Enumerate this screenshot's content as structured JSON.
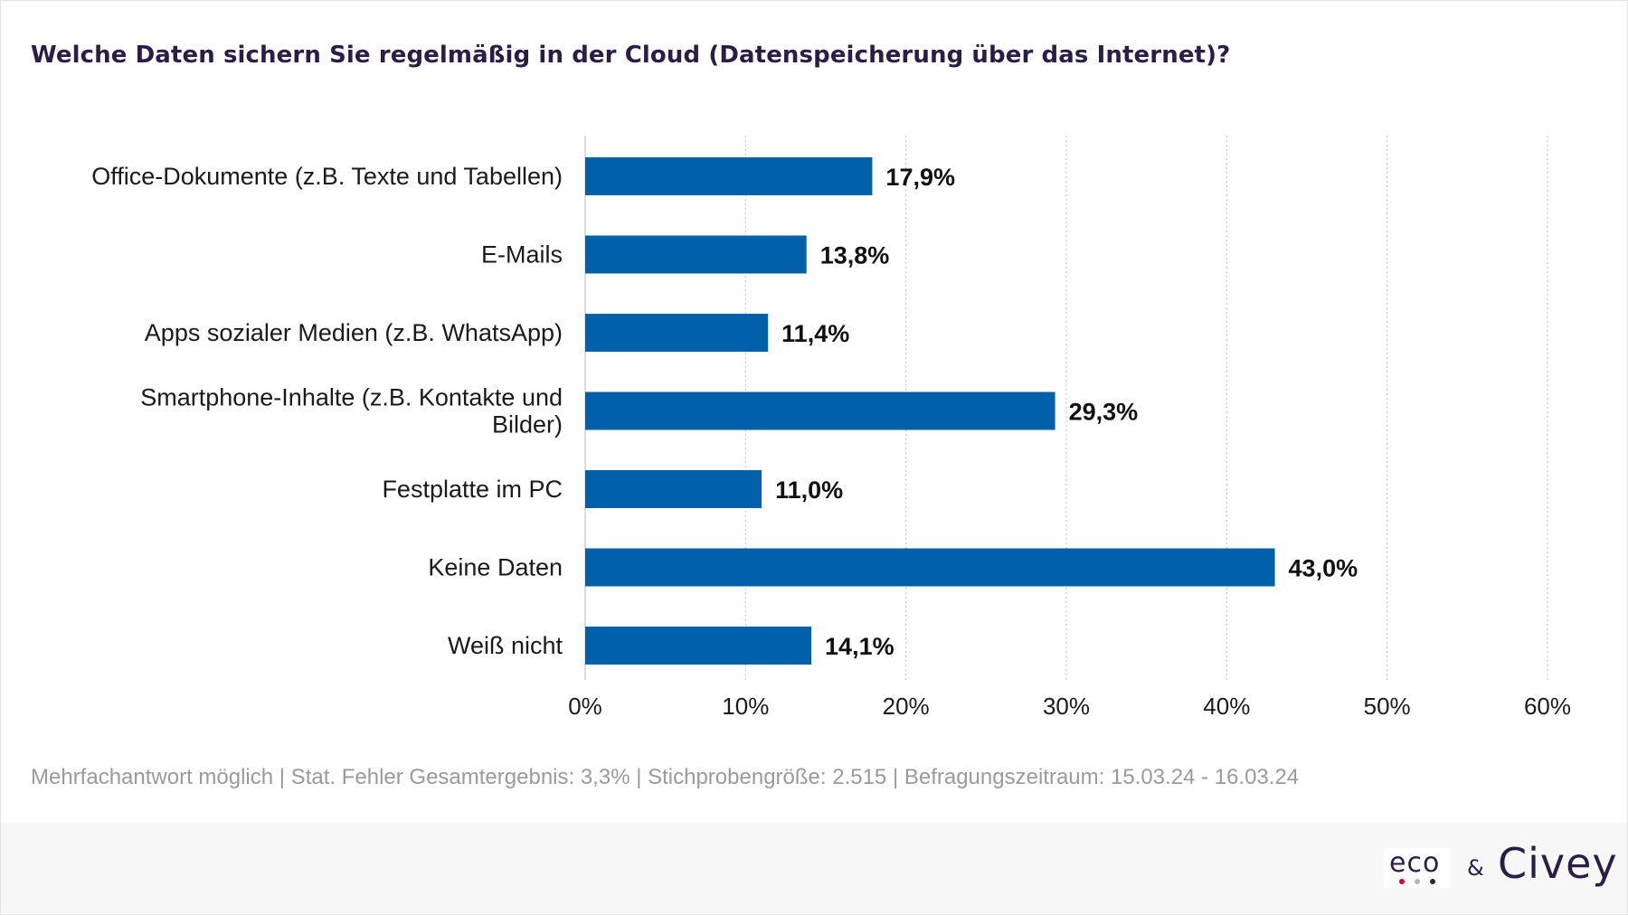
{
  "title": "Welche Daten sichern Sie regelmäßig in der Cloud (Datenspeicherung über das Internet)?",
  "footnote": "Mehrfachantwort möglich | Stat. Fehler Gesamtergebnis: 3,3% | Stichprobengröße: 2.515 | Befragungszeitraum: 15.03.24 - 16.03.24",
  "logos": {
    "eco": "eco",
    "ampersand": "&",
    "civey": "Civey",
    "eco_dot_colors": [
      "#e2001a",
      "#b5b5b5",
      "#2b1e46"
    ]
  },
  "colors": {
    "bar": "#0061aa",
    "title": "#2b1e46",
    "grid": "#c8c8c8"
  },
  "chart_data": {
    "type": "bar",
    "orientation": "horizontal",
    "categories": [
      [
        "Office-Dokumente (z.B. Texte und Tabellen)"
      ],
      [
        "E-Mails"
      ],
      [
        "Apps sozialer Medien (z.B. WhatsApp)"
      ],
      [
        "Smartphone-Inhalte (z.B. Kontakte und",
        "Bilder)"
      ],
      [
        "Festplatte im PC"
      ],
      [
        "Keine Daten"
      ],
      [
        "Weiß nicht"
      ]
    ],
    "values": [
      17.9,
      13.8,
      11.4,
      29.3,
      11.0,
      43.0,
      14.1
    ],
    "value_labels": [
      "17,9%",
      "13,8%",
      "11,4%",
      "29,3%",
      "11,0%",
      "43,0%",
      "14,1%"
    ],
    "xlim": [
      0,
      60
    ],
    "xticks": [
      0,
      10,
      20,
      30,
      40,
      50,
      60
    ],
    "xtick_labels": [
      "0%",
      "10%",
      "20%",
      "30%",
      "40%",
      "50%",
      "60%"
    ],
    "grid": true,
    "legend": "none"
  }
}
